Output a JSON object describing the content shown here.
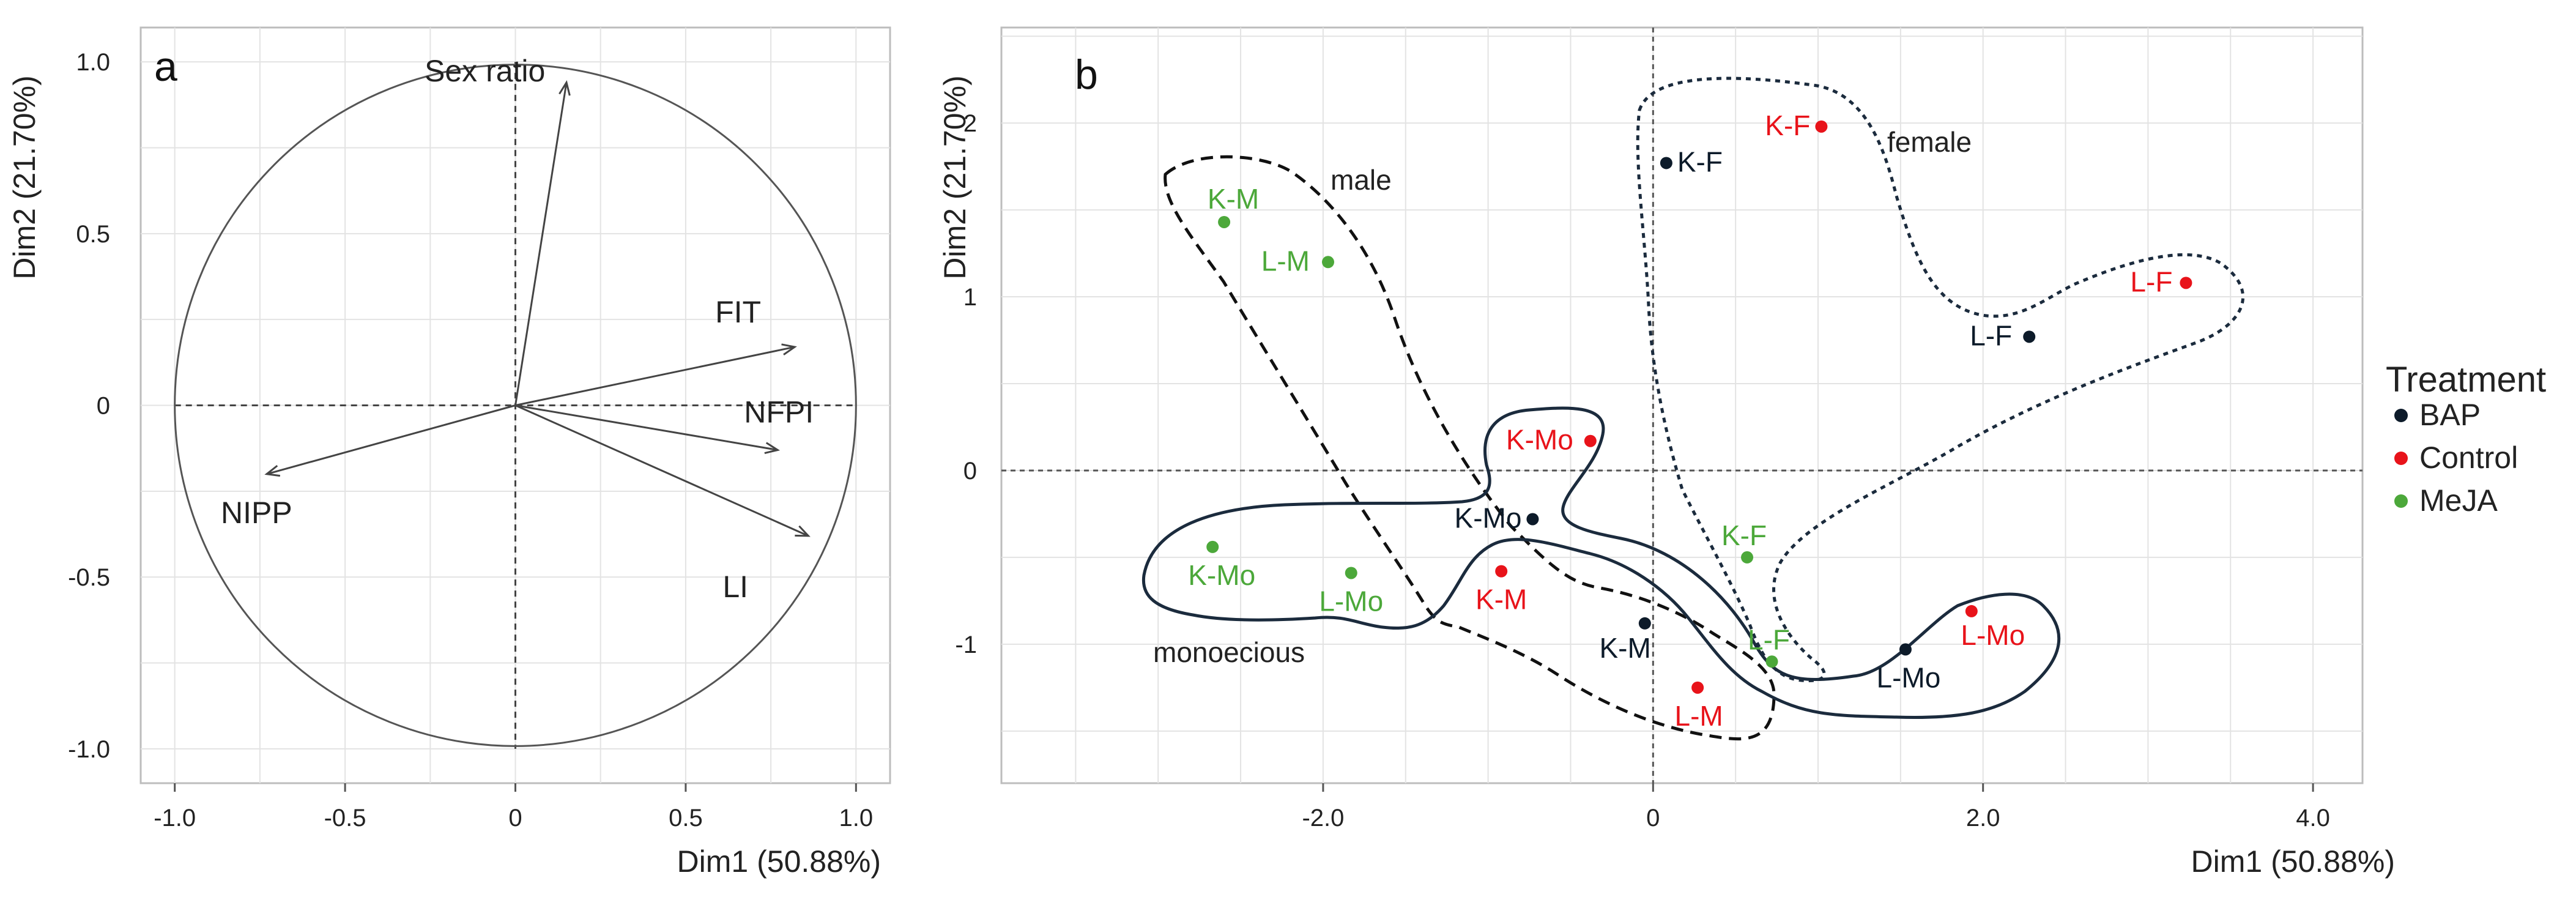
{
  "chart_data": [
    {
      "panel": "a",
      "type": "scatter",
      "subtype": "variable-correlation-circle",
      "xlabel": "Dim1 (50.88%)",
      "ylabel": "Dim2 (21.70%)",
      "xlim": [
        -1.1,
        1.1
      ],
      "ylim": [
        -1.1,
        1.1
      ],
      "x_ticks": [
        -1.0,
        -0.5,
        0,
        0.5,
        1.0
      ],
      "x_tick_labels": [
        "-1.0",
        "-0.5",
        "0",
        "0.5",
        "1.0"
      ],
      "y_ticks": [
        -1.0,
        -0.5,
        0,
        0.5,
        1.0
      ],
      "y_tick_labels": [
        "-1.0",
        "-0.5",
        "0",
        "0.5",
        "1.0"
      ],
      "grid": true,
      "vectors": [
        {
          "name": "Sex ratio",
          "x": 0.15,
          "y": 0.94
        },
        {
          "name": "FIT",
          "x": 0.82,
          "y": 0.17
        },
        {
          "name": "NFPI",
          "x": 0.77,
          "y": -0.13
        },
        {
          "name": "LI",
          "x": 0.86,
          "y": -0.38
        },
        {
          "name": "NIPP",
          "x": -0.73,
          "y": -0.2
        }
      ]
    },
    {
      "panel": "b",
      "type": "scatter",
      "xlabel": "Dim1 (50.88%)",
      "ylabel": "Dim2 (21.70%)",
      "xlim": [
        -3.95,
        4.3
      ],
      "ylim": [
        -1.8,
        2.55
      ],
      "x_ticks": [
        -2.0,
        0,
        2.0,
        4.0
      ],
      "x_tick_labels": [
        "-2.0",
        "0",
        "2.0",
        "4.0"
      ],
      "y_ticks": [
        -1,
        0,
        1,
        2
      ],
      "y_tick_labels": [
        "-1",
        "0",
        "1",
        "2"
      ],
      "grid": true,
      "legend": {
        "title": "Treatment",
        "position": "right",
        "entries": [
          {
            "name": "BAP",
            "color": "#0d1b2a"
          },
          {
            "name": "Control",
            "color": "#e8131a"
          },
          {
            "name": "MeJA",
            "color": "#4ca83a"
          }
        ]
      },
      "points": [
        {
          "label": "K-F",
          "treatment": "BAP",
          "x": 0.08,
          "y": 1.77
        },
        {
          "label": "L-F",
          "treatment": "BAP",
          "x": 2.28,
          "y": 0.77
        },
        {
          "label": "K-Mo",
          "treatment": "BAP",
          "x": -0.73,
          "y": -0.28
        },
        {
          "label": "K-M",
          "treatment": "BAP",
          "x": -0.05,
          "y": -0.88
        },
        {
          "label": "L-Mo",
          "treatment": "BAP",
          "x": 1.53,
          "y": -1.03
        },
        {
          "label": "K-F",
          "treatment": "Control",
          "x": 1.02,
          "y": 1.98
        },
        {
          "label": "L-F",
          "treatment": "Control",
          "x": 3.23,
          "y": 1.08
        },
        {
          "label": "K-Mo",
          "treatment": "Control",
          "x": -0.38,
          "y": 0.17
        },
        {
          "label": "K-M",
          "treatment": "Control",
          "x": -0.92,
          "y": -0.58
        },
        {
          "label": "L-Mo",
          "treatment": "Control",
          "x": 1.93,
          "y": -0.81
        },
        {
          "label": "L-M",
          "treatment": "Control",
          "x": 0.27,
          "y": -1.25
        },
        {
          "label": "K-M",
          "treatment": "MeJA",
          "x": -2.6,
          "y": 1.43
        },
        {
          "label": "L-M",
          "treatment": "MeJA",
          "x": -1.97,
          "y": 1.2
        },
        {
          "label": "K-Mo",
          "treatment": "MeJA",
          "x": -2.67,
          "y": -0.44
        },
        {
          "label": "L-Mo",
          "treatment": "MeJA",
          "x": -1.83,
          "y": -0.59
        },
        {
          "label": "K-F",
          "treatment": "MeJA",
          "x": 0.57,
          "y": -0.5
        },
        {
          "label": "L-F",
          "treatment": "MeJA",
          "x": 0.72,
          "y": -1.1
        }
      ],
      "groups": [
        {
          "name": "male",
          "line": "dashed"
        },
        {
          "name": "female",
          "line": "dotted"
        },
        {
          "name": "monoecious",
          "line": "solid"
        }
      ]
    }
  ]
}
